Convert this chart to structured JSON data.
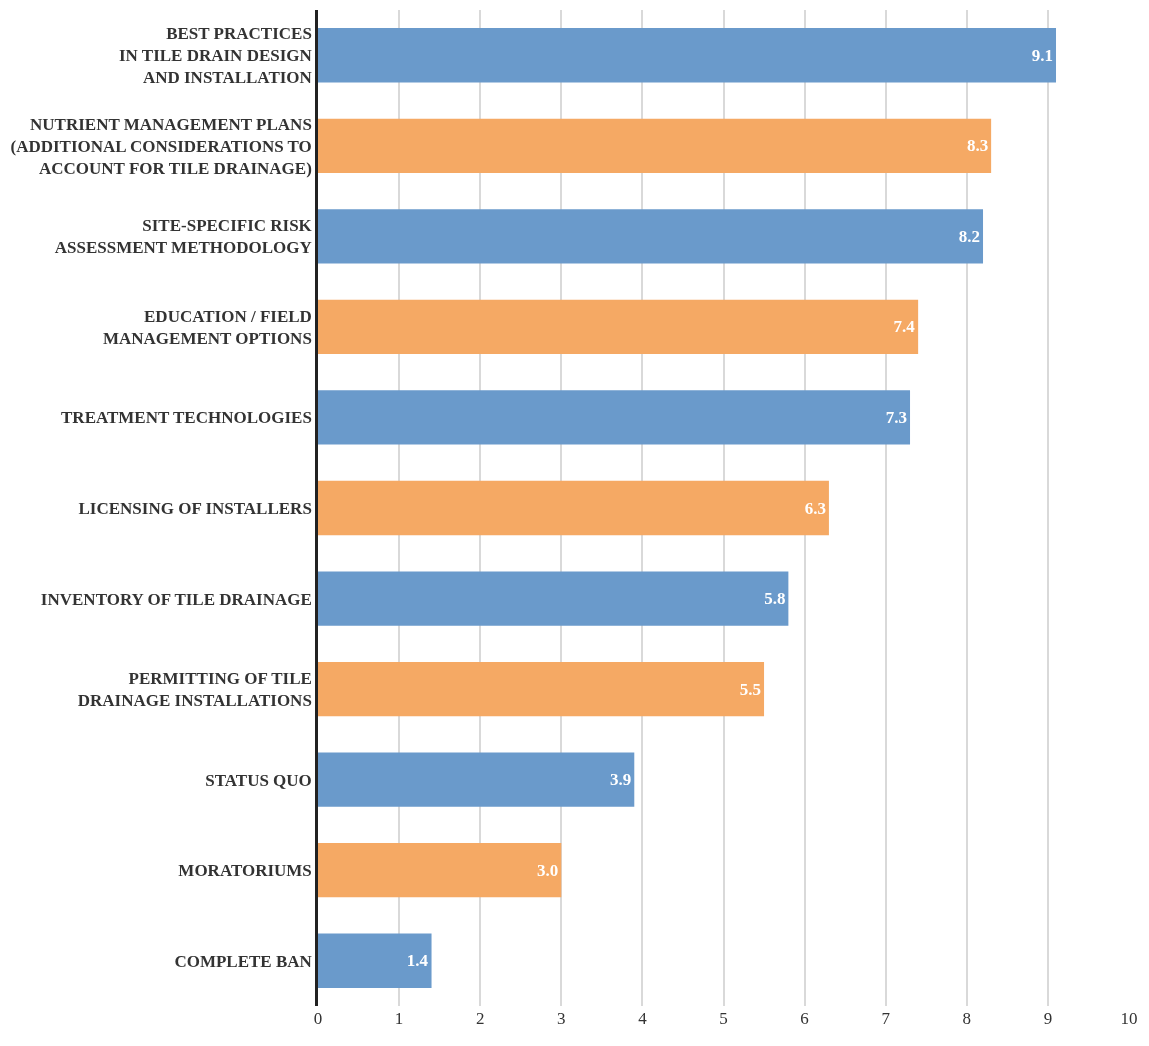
{
  "chart_data": {
    "type": "bar",
    "orientation": "horizontal",
    "categories": [
      "BEST PRACTICES\nIN TILE DRAIN DESIGN\nAND INSTALLATION",
      "NUTRIENT MANAGEMENT PLANS\n(ADDITIONAL CONSIDERATIONS TO\nACCOUNT FOR TILE DRAINAGE)",
      "SITE-SPECIFIC RISK\nASSESSMENT METHODOLOGY",
      "EDUCATION / FIELD\nMANAGEMENT OPTIONS",
      "TREATMENT TECHNOLOGIES",
      "LICENSING OF INSTALLERS",
      "INVENTORY OF TILE DRAINAGE",
      "PERMITTING OF TILE\nDRAINAGE INSTALLATIONS",
      "STATUS QUO",
      "MORATORIUMS",
      "COMPLETE BAN"
    ],
    "values": [
      9.1,
      8.3,
      8.2,
      7.4,
      7.3,
      6.3,
      5.8,
      5.5,
      3.9,
      3.0,
      1.4
    ],
    "value_labels": [
      "9.1",
      "8.3",
      "8.2",
      "7.4",
      "7.3",
      "6.3",
      "5.8",
      "5.5",
      "3.9",
      "3.0",
      "1.4"
    ],
    "colors": [
      "#6a9acb",
      "#f5a964",
      "#6a9acb",
      "#f5a964",
      "#6a9acb",
      "#f5a964",
      "#6a9acb",
      "#f5a964",
      "#6a9acb",
      "#f5a964",
      "#6a9acb"
    ],
    "xlim": [
      0,
      10
    ],
    "xticks": [
      0,
      1,
      2,
      3,
      4,
      5,
      6,
      7,
      8,
      9,
      10
    ],
    "grid": "x"
  }
}
